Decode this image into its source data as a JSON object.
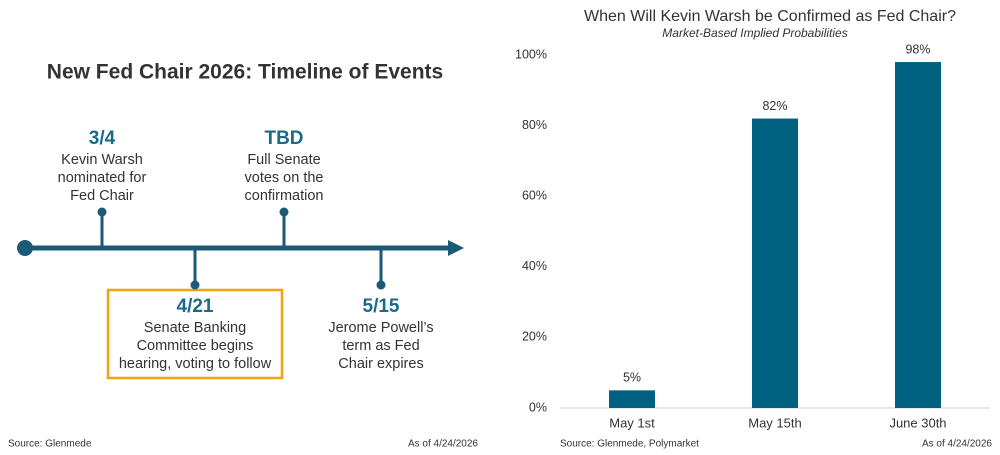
{
  "timeline": {
    "title": "New Fed Chair 2026: Timeline of Events",
    "events": [
      {
        "date": "3/4",
        "lines": [
          "Kevin Warsh",
          "nominated for",
          "Fed Chair"
        ]
      },
      {
        "date": "4/21",
        "lines": [
          "Senate Banking",
          "Committee begins",
          "hearing, voting to follow"
        ]
      },
      {
        "date": "TBD",
        "lines": [
          "Full Senate",
          "votes on the",
          "confirmation"
        ]
      },
      {
        "date": "5/15",
        "lines": [
          "Jerome Powell’s",
          "term as Fed",
          "Chair expires"
        ]
      }
    ],
    "source": "Source: Glenmede",
    "as_of": "As of 4/24/2026"
  },
  "chart_data": {
    "type": "bar",
    "title": "When Will Kevin Warsh be Confirmed as Fed Chair?",
    "subtitle": "Market-Based Implied Probabilities",
    "categories": [
      "May 1st",
      "May 15th",
      "June 30th"
    ],
    "values": [
      5,
      82,
      98
    ],
    "value_labels": [
      "5%",
      "82%",
      "98%"
    ],
    "color": "#00607f",
    "ylim": [
      0,
      100
    ],
    "yticks": [
      {
        "value": 0,
        "label": "0%"
      },
      {
        "value": 20,
        "label": "20%"
      },
      {
        "value": 40,
        "label": "40%"
      },
      {
        "value": 60,
        "label": "60%"
      },
      {
        "value": 80,
        "label": "80%"
      },
      {
        "value": 100,
        "label": "100%"
      }
    ],
    "grid": false,
    "source": "Source: Glenmede, Polymarket",
    "as_of": "As of 4/24/2026"
  }
}
